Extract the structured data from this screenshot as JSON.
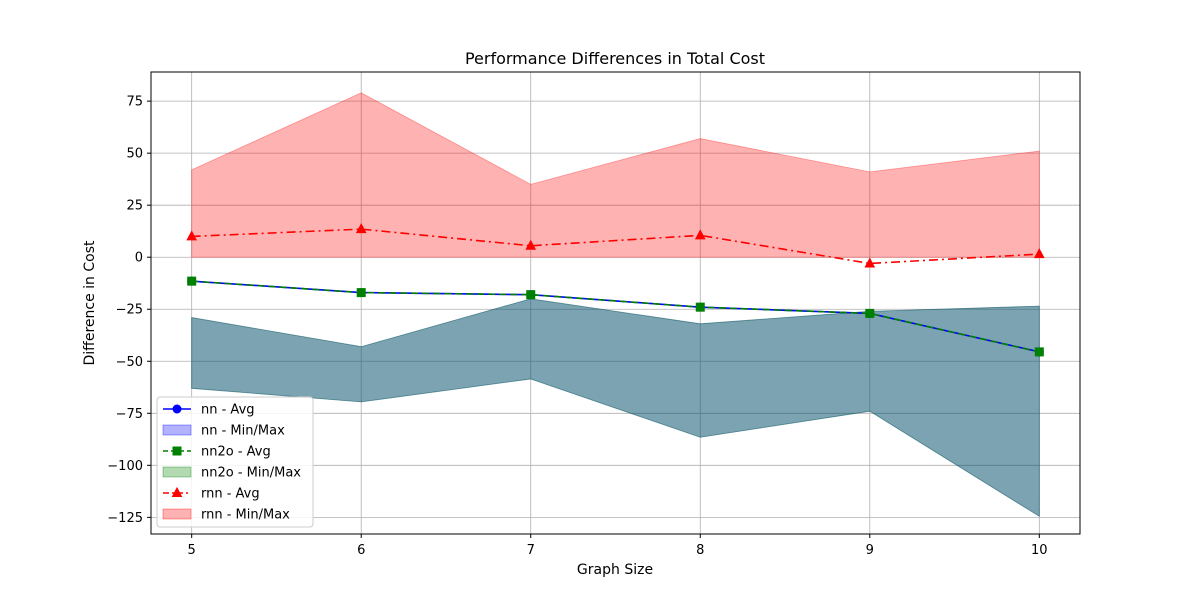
{
  "chart_data": {
    "type": "line",
    "title": "Performance Differences in Total Cost",
    "xlabel": "Graph Size",
    "ylabel": "Difference in Cost",
    "x": [
      5,
      6,
      7,
      8,
      9,
      10
    ],
    "xlim": [
      4.76,
      10.24
    ],
    "ylim": [
      -133,
      89
    ],
    "yticks": [
      75,
      50,
      25,
      0,
      -25,
      -50,
      -75,
      -100,
      -125
    ],
    "ytick_labels": [
      "75",
      "50",
      "25",
      "0",
      "−25",
      "−50",
      "−75",
      "−100",
      "−125"
    ],
    "xticks": [
      5,
      6,
      7,
      8,
      9,
      10
    ],
    "xtick_labels": [
      "5",
      "6",
      "7",
      "8",
      "9",
      "10"
    ],
    "grid": true,
    "legend_position": "lower-left",
    "series": [
      {
        "name": "nn",
        "avg_label": "nn - Avg",
        "band_label": "nn - Min/Max",
        "color": "#0000ff",
        "band_color": "#0000ff",
        "marker": "circle",
        "line_style": "solid",
        "avg": [
          -11.5,
          -17,
          -18,
          -24,
          -27,
          -45.5
        ],
        "min": [
          -63,
          -69.5,
          -58.5,
          -86.5,
          -74,
          -124.5
        ],
        "max": [
          -29,
          -43,
          -20,
          -32,
          -26,
          -23.5
        ]
      },
      {
        "name": "nn2o",
        "avg_label": "nn2o - Avg",
        "band_label": "nn2o - Min/Max",
        "color": "#008000",
        "band_color": "#008000",
        "marker": "square",
        "line_style": "dashed",
        "avg": [
          -11.5,
          -17,
          -18,
          -24,
          -27,
          -45.5
        ],
        "min": [
          -63,
          -69.5,
          -58.5,
          -86.5,
          -74,
          -124.5
        ],
        "max": [
          -29,
          -43,
          -20,
          -32,
          -26,
          -23.5
        ]
      },
      {
        "name": "rnn",
        "avg_label": "rnn - Avg",
        "band_label": "rnn - Min/Max",
        "color": "#ff0000",
        "band_color": "#ff0000",
        "marker": "triangle",
        "line_style": "dashdot",
        "avg": [
          10,
          13.5,
          5.5,
          10.5,
          -3,
          1.5
        ],
        "min": [
          0,
          0,
          0,
          0,
          0,
          0
        ],
        "max": [
          42,
          79,
          35,
          57,
          41,
          51
        ]
      }
    ]
  }
}
